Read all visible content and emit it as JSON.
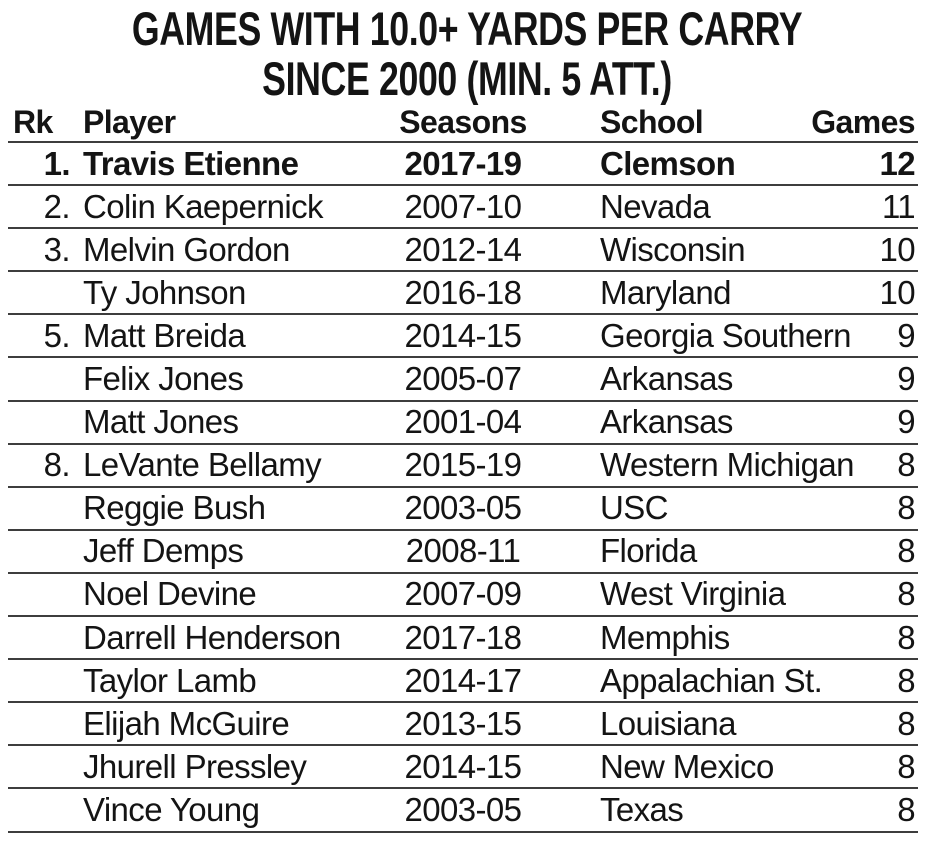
{
  "title": {
    "line1": "GAMES WITH 10.0+ YARDS PER CARRY",
    "line2": "SINCE 2000 (MIN. 5 ATT.)"
  },
  "table": {
    "columns": {
      "rank": "Rk",
      "player": "Player",
      "seasons": "Seasons",
      "school": "School",
      "games": "Games"
    },
    "rows": [
      {
        "rank": "1.",
        "player": "Travis Etienne",
        "seasons": "2017-19",
        "school": "Clemson",
        "games": "12",
        "bold": true
      },
      {
        "rank": "2.",
        "player": "Colin Kaepernick",
        "seasons": "2007-10",
        "school": "Nevada",
        "games": "11",
        "bold": false
      },
      {
        "rank": "3.",
        "player": "Melvin Gordon",
        "seasons": "2012-14",
        "school": "Wisconsin",
        "games": "10",
        "bold": false
      },
      {
        "rank": "",
        "player": "Ty Johnson",
        "seasons": "2016-18",
        "school": "Maryland",
        "games": "10",
        "bold": false
      },
      {
        "rank": "5.",
        "player": "Matt Breida",
        "seasons": "2014-15",
        "school": "Georgia Southern",
        "games": "9",
        "bold": false
      },
      {
        "rank": "",
        "player": "Felix Jones",
        "seasons": "2005-07",
        "school": "Arkansas",
        "games": "9",
        "bold": false
      },
      {
        "rank": "",
        "player": "Matt Jones",
        "seasons": "2001-04",
        "school": "Arkansas",
        "games": "9",
        "bold": false
      },
      {
        "rank": "8.",
        "player": "LeVante Bellamy",
        "seasons": "2015-19",
        "school": "Western Michigan",
        "games": "8",
        "bold": false
      },
      {
        "rank": "",
        "player": "Reggie Bush",
        "seasons": "2003-05",
        "school": "USC",
        "games": "8",
        "bold": false
      },
      {
        "rank": "",
        "player": "Jeff Demps",
        "seasons": "2008-11",
        "school": "Florida",
        "games": "8",
        "bold": false
      },
      {
        "rank": "",
        "player": "Noel Devine",
        "seasons": "2007-09",
        "school": "West Virginia",
        "games": "8",
        "bold": false
      },
      {
        "rank": "",
        "player": "Darrell Henderson",
        "seasons": "2017-18",
        "school": "Memphis",
        "games": "8",
        "bold": false
      },
      {
        "rank": "",
        "player": "Taylor Lamb",
        "seasons": "2014-17",
        "school": "Appalachian St.",
        "games": "8",
        "bold": false
      },
      {
        "rank": "",
        "player": "Elijah McGuire",
        "seasons": "2013-15",
        "school": "Louisiana",
        "games": "8",
        "bold": false
      },
      {
        "rank": "",
        "player": "Jhurell Pressley",
        "seasons": "2014-15",
        "school": "New Mexico",
        "games": "8",
        "bold": false
      },
      {
        "rank": "",
        "player": "Vince Young",
        "seasons": "2003-05",
        "school": "Texas",
        "games": "8",
        "bold": false
      }
    ]
  },
  "colors": {
    "background": "#ffffff",
    "text": "#141414",
    "rule_line": "#3d3d3d"
  }
}
